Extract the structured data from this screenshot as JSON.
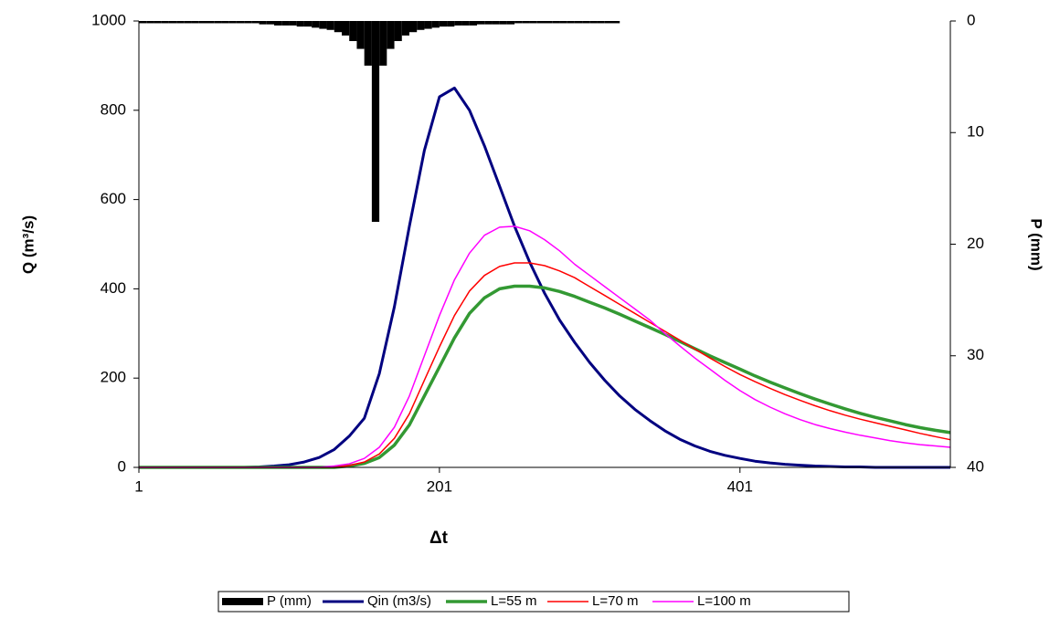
{
  "chart_data": {
    "type": "line",
    "x_label": "Δt",
    "y_label": "Q (m³/s)",
    "y2_label": "P (mm)",
    "xlim": [
      1,
      541
    ],
    "xticks": [
      1,
      201,
      401
    ],
    "ylim": [
      0,
      1000
    ],
    "yticks": [
      0,
      200,
      400,
      600,
      800,
      1000
    ],
    "y2lim": [
      0,
      40
    ],
    "y2ticks": [
      0,
      10,
      20,
      30,
      40
    ],
    "y2_inverted": true,
    "legend": "bottom",
    "x": [
      1,
      11,
      21,
      31,
      41,
      51,
      61,
      71,
      81,
      91,
      101,
      111,
      121,
      131,
      141,
      151,
      161,
      171,
      181,
      191,
      201,
      211,
      221,
      231,
      241,
      251,
      261,
      271,
      281,
      291,
      301,
      311,
      321,
      331,
      341,
      351,
      361,
      371,
      381,
      391,
      401,
      411,
      421,
      431,
      441,
      451,
      461,
      471,
      481,
      491,
      501,
      511,
      521,
      531,
      541
    ],
    "series": [
      {
        "name": "P (mm)",
        "type": "bar",
        "axis": "y2",
        "color": "#000000",
        "x": [
          1,
          6,
          11,
          16,
          21,
          26,
          31,
          36,
          41,
          46,
          51,
          56,
          61,
          66,
          71,
          76,
          81,
          86,
          91,
          96,
          101,
          106,
          111,
          116,
          121,
          126,
          131,
          136,
          141,
          146,
          151,
          156,
          161,
          166,
          171,
          176,
          181,
          186,
          191,
          196,
          201,
          206,
          211,
          216,
          221,
          226,
          231,
          236,
          241,
          246,
          251,
          256,
          261,
          266,
          271,
          276,
          281,
          286,
          291,
          296,
          301,
          306,
          311,
          316
        ],
        "values": [
          0.2,
          0.2,
          0.2,
          0.2,
          0.2,
          0.2,
          0.2,
          0.2,
          0.2,
          0.2,
          0.2,
          0.2,
          0.2,
          0.2,
          0.2,
          0.2,
          0.3,
          0.3,
          0.4,
          0.4,
          0.4,
          0.5,
          0.5,
          0.6,
          0.7,
          0.8,
          1.0,
          1.3,
          1.8,
          2.5,
          4,
          18,
          4,
          2.5,
          1.8,
          1.3,
          1,
          0.8,
          0.7,
          0.6,
          0.5,
          0.5,
          0.4,
          0.4,
          0.4,
          0.3,
          0.3,
          0.3,
          0.3,
          0.3,
          0.2,
          0.2,
          0.2,
          0.2,
          0.2,
          0.2,
          0.2,
          0.2,
          0.2,
          0.2,
          0.2,
          0.2,
          0.2,
          0.2
        ]
      },
      {
        "name": "Qin (m3/s)",
        "color": "#000080",
        "width": 3,
        "values": [
          0,
          0,
          0,
          0,
          0,
          0,
          0,
          0,
          1,
          3,
          6,
          12,
          22,
          40,
          70,
          110,
          210,
          360,
          540,
          710,
          830,
          850,
          800,
          720,
          630,
          540,
          460,
          390,
          330,
          280,
          235,
          195,
          160,
          130,
          105,
          82,
          63,
          48,
          36,
          27,
          20,
          14,
          10,
          7,
          5,
          3,
          2,
          1,
          1,
          0,
          0,
          0,
          0,
          0,
          0
        ]
      },
      {
        "name": "L=55 m",
        "color": "#339933",
        "width": 3.5,
        "values": [
          0,
          0,
          0,
          0,
          0,
          0,
          0,
          0,
          0,
          0,
          0,
          0,
          0,
          0,
          3,
          9,
          22,
          50,
          95,
          160,
          225,
          290,
          345,
          380,
          400,
          406,
          406,
          402,
          394,
          383,
          370,
          357,
          343,
          328,
          313,
          298,
          282,
          266,
          250,
          235,
          220,
          205,
          191,
          178,
          165,
          153,
          142,
          131,
          121,
          112,
          104,
          96,
          89,
          83,
          78
        ]
      },
      {
        "name": "L=70 m",
        "color": "#ff0000",
        "width": 1.5,
        "values": [
          0,
          0,
          0,
          0,
          0,
          0,
          0,
          0,
          0,
          0,
          0,
          0,
          0,
          0,
          4,
          12,
          30,
          65,
          120,
          195,
          270,
          340,
          395,
          430,
          450,
          458,
          458,
          452,
          440,
          425,
          405,
          385,
          365,
          345,
          325,
          305,
          285,
          265,
          245,
          226,
          208,
          192,
          177,
          163,
          150,
          138,
          127,
          117,
          108,
          100,
          92,
          84,
          76,
          69,
          62
        ]
      },
      {
        "name": "L=100 m",
        "color": "#ff00ff",
        "width": 1.5,
        "values": [
          0,
          0,
          0,
          0,
          0,
          0,
          0,
          0,
          0,
          0,
          0,
          0,
          0,
          3,
          8,
          20,
          45,
          90,
          160,
          250,
          340,
          420,
          480,
          520,
          538,
          540,
          530,
          510,
          485,
          455,
          430,
          405,
          380,
          355,
          330,
          300,
          272,
          245,
          220,
          195,
          172,
          152,
          135,
          120,
          107,
          96,
          87,
          79,
          72,
          66,
          60,
          55,
          51,
          48,
          45
        ]
      }
    ]
  }
}
